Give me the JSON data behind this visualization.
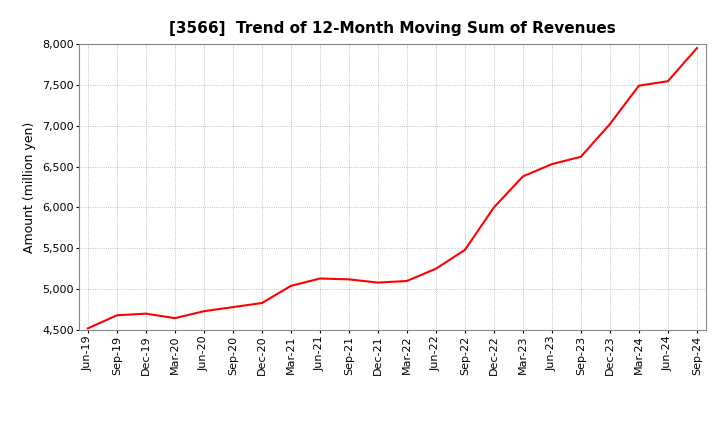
{
  "title": "[3566]  Trend of 12-Month Moving Sum of Revenues",
  "ylabel": "Amount (million yen)",
  "line_color": "#FF0000",
  "line_width": 1.5,
  "background_color": "#FFFFFF",
  "grid_color": "#999999",
  "ylim": [
    4500,
    8000
  ],
  "yticks": [
    4500,
    5000,
    5500,
    6000,
    6500,
    7000,
    7500,
    8000
  ],
  "x_labels": [
    "Jun-19",
    "Sep-19",
    "Dec-19",
    "Mar-20",
    "Jun-20",
    "Sep-20",
    "Dec-20",
    "Mar-21",
    "Jun-21",
    "Sep-21",
    "Dec-21",
    "Mar-22",
    "Jun-22",
    "Sep-22",
    "Dec-22",
    "Mar-23",
    "Jun-23",
    "Sep-23",
    "Dec-23",
    "Mar-24",
    "Jun-24",
    "Sep-24"
  ],
  "values": [
    4520,
    4680,
    4700,
    4645,
    4730,
    4780,
    4830,
    5040,
    5130,
    5120,
    5080,
    5100,
    5250,
    5480,
    6000,
    6380,
    6530,
    6620,
    7020,
    7490,
    7545,
    7950
  ],
  "title_fontsize": 11,
  "ylabel_fontsize": 9,
  "tick_fontsize": 8
}
